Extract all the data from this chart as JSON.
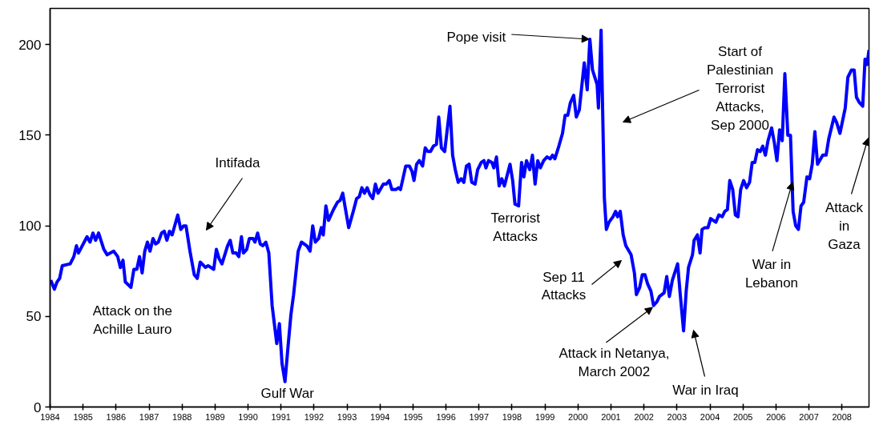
{
  "chart_data": {
    "type": "line",
    "x": [
      1984.02,
      1984.13,
      1984.21,
      1984.29,
      1984.37,
      1984.61,
      1984.72,
      1984.8,
      1984.86,
      1985.12,
      1985.21,
      1985.3,
      1985.38,
      1985.47,
      1985.63,
      1985.73,
      1985.93,
      1986.05,
      1986.13,
      1986.21,
      1986.28,
      1986.45,
      1986.54,
      1986.63,
      1986.71,
      1986.79,
      1986.87,
      1986.95,
      1987.03,
      1987.12,
      1987.2,
      1987.28,
      1987.38,
      1987.46,
      1987.54,
      1987.62,
      1987.7,
      1987.87,
      1987.96,
      1988.05,
      1988.12,
      1988.24,
      1988.37,
      1988.46,
      1988.55,
      1988.71,
      1988.79,
      1988.96,
      1989.04,
      1989.12,
      1989.21,
      1989.38,
      1989.46,
      1989.54,
      1989.64,
      1989.72,
      1989.8,
      1989.86,
      1989.96,
      1990.04,
      1990.15,
      1990.21,
      1990.29,
      1990.37,
      1990.45,
      1990.54,
      1990.63,
      1990.73,
      1990.87,
      1990.95,
      1991.03,
      1991.12,
      1991.22,
      1991.3,
      1991.38,
      1991.52,
      1991.62,
      1991.78,
      1991.88,
      1991.96,
      1992.04,
      1992.14,
      1992.22,
      1992.28,
      1992.36,
      1992.44,
      1992.59,
      1992.71,
      1992.79,
      1992.87,
      1993.05,
      1993.19,
      1993.29,
      1993.37,
      1993.45,
      1993.53,
      1993.61,
      1993.7,
      1993.78,
      1993.86,
      1993.94,
      1994.1,
      1994.19,
      1994.28,
      1994.36,
      1994.48,
      1994.56,
      1994.62,
      1994.78,
      1994.89,
      1994.97,
      1995.03,
      1995.11,
      1995.19,
      1995.29,
      1995.37,
      1995.45,
      1995.53,
      1995.62,
      1995.71,
      1995.78,
      1995.86,
      1995.96,
      1996.12,
      1996.2,
      1996.28,
      1996.37,
      1996.46,
      1996.54,
      1996.62,
      1996.7,
      1996.78,
      1996.88,
      1996.96,
      1997.07,
      1997.15,
      1997.21,
      1997.29,
      1997.39,
      1997.45,
      1997.53,
      1997.61,
      1997.69,
      1997.77,
      1997.94,
      1998.02,
      1998.09,
      1998.2,
      1998.29,
      1998.36,
      1998.44,
      1998.54,
      1998.62,
      1998.7,
      1998.78,
      1998.86,
      1998.96,
      1999.06,
      1999.16,
      1999.23,
      1999.3,
      1999.42,
      1999.53,
      1999.61,
      1999.69,
      1999.77,
      1999.87,
      1999.95,
      2000.04,
      2000.19,
      2000.28,
      2000.36,
      2000.44,
      2000.58,
      2000.62,
      2000.7,
      2000.8,
      2000.86,
      2000.94,
      2001.06,
      2001.14,
      2001.2,
      2001.28,
      2001.37,
      2001.45,
      2001.61,
      2001.71,
      2001.77,
      2001.87,
      2001.95,
      2002.03,
      2002.11,
      2002.21,
      2002.29,
      2002.39,
      2002.47,
      2002.61,
      2002.69,
      2002.77,
      2002.86,
      2003.02,
      2003.1,
      2003.2,
      2003.28,
      2003.35,
      2003.47,
      2003.52,
      2003.62,
      2003.7,
      2003.76,
      2003.85,
      2003.94,
      2004.02,
      2004.18,
      2004.27,
      2004.37,
      2004.45,
      2004.53,
      2004.6,
      2004.69,
      2004.77,
      2004.85,
      2004.93,
      2005.02,
      2005.11,
      2005.2,
      2005.28,
      2005.36,
      2005.44,
      2005.52,
      2005.6,
      2005.68,
      2005.76,
      2005.87,
      2005.95,
      2006.03,
      2006.11,
      2006.19,
      2006.27,
      2006.36,
      2006.44,
      2006.52,
      2006.6,
      2006.68,
      2006.76,
      2006.84,
      2006.94,
      2007.02,
      2007.1,
      2007.18,
      2007.26,
      2007.42,
      2007.52,
      2007.6,
      2007.76,
      2007.84,
      2007.94,
      2008.1,
      2008.18,
      2008.29,
      2008.37,
      2008.44,
      2008.53,
      2008.63,
      2008.7,
      2008.76,
      2008.82
    ],
    "series": [
      {
        "color": "#0000ff",
        "values": [
          70,
          65,
          69,
          71,
          78,
          79,
          83,
          89,
          85,
          94,
          91,
          96,
          92,
          96,
          87,
          84,
          86,
          83,
          77,
          81,
          69,
          66,
          76,
          76,
          83,
          74,
          86,
          91,
          86,
          93,
          90,
          91,
          96,
          97,
          92,
          97,
          95,
          106,
          98,
          100,
          100,
          86,
          73,
          71,
          80,
          77,
          78,
          76,
          87,
          82,
          79,
          89,
          92,
          85,
          85,
          83,
          94,
          85,
          87,
          93,
          93,
          91,
          96,
          90,
          89,
          91,
          85,
          56,
          35,
          46,
          24,
          14,
          35,
          51,
          62,
          86,
          91,
          89,
          86,
          100,
          91,
          93,
          99,
          95,
          111,
          103,
          109,
          113,
          114,
          118,
          99,
          108,
          115,
          116,
          121,
          118,
          121,
          117,
          115,
          123,
          118,
          123,
          123,
          125,
          120,
          120,
          121,
          120,
          133,
          133,
          130,
          125,
          134,
          136,
          133,
          143,
          141,
          141,
          144,
          145,
          160,
          143,
          141,
          166,
          139,
          131,
          124,
          126,
          124,
          133,
          134,
          124,
          123,
          131,
          135,
          136,
          132,
          136,
          135,
          132,
          138,
          122,
          126,
          122,
          134,
          125,
          112,
          111,
          135,
          127,
          136,
          131,
          139,
          123,
          136,
          132,
          136,
          138,
          137,
          139,
          137,
          144,
          151,
          161,
          161,
          168,
          172,
          160,
          164,
          190,
          175,
          203,
          186,
          178,
          165,
          208,
          115,
          98,
          102,
          105,
          108,
          105,
          108,
          95,
          89,
          84,
          74,
          62,
          66,
          73,
          73,
          68,
          64,
          56,
          58,
          61,
          63,
          72,
          61,
          70,
          79,
          62,
          42,
          64,
          77,
          84,
          92,
          95,
          85,
          98,
          99,
          99,
          104,
          102,
          106,
          105,
          108,
          109,
          125,
          120,
          106,
          105,
          120,
          125,
          121,
          124,
          135,
          135,
          142,
          141,
          144,
          139,
          147,
          154,
          146,
          136,
          153,
          147,
          184,
          150,
          150,
          108,
          100,
          98,
          111,
          113,
          127,
          126,
          134,
          152,
          134,
          139,
          139,
          148,
          160,
          157,
          151,
          165,
          182,
          186,
          186,
          171,
          168,
          166,
          192,
          189,
          197
        ]
      }
    ],
    "xlim": [
      1984,
      2008.82
    ],
    "ylim": [
      0,
      220
    ],
    "xticks": [
      1984,
      1985,
      1986,
      1987,
      1988,
      1989,
      1990,
      1991,
      1992,
      1993,
      1994,
      1995,
      1996,
      1997,
      1998,
      1999,
      2000,
      2001,
      2002,
      2003,
      2004,
      2005,
      2006,
      2007,
      2008
    ],
    "yticks": [
      0,
      50,
      100,
      150,
      200
    ],
    "grid": false,
    "marker": "none",
    "line_style": "solid",
    "annotations": [
      {
        "text": "Attack on the\nAchille Lauro",
        "x": 1986.45,
        "y": 66
      },
      "Intifada",
      {
        "text": "Gulf War",
        "x": 1991.12,
        "y": 14
      },
      {
        "text": "Pope visit",
        "x": 2000.34,
        "y": 203
      },
      {
        "text": "Terrorist\nAttacks",
        "x": 1998.2,
        "y": 111
      },
      "Start of\nPalestinian\nTerrorist\nAttacks,\nSep 2000",
      "Sep 11\nAttacks",
      {
        "text": "Attack in Netanya,\nMarch 2002",
        "x": 2002.26,
        "y": 55
      },
      "War in Iraq",
      {
        "text": "War in\nLebanon",
        "x": 2006.5,
        "y": 124
      },
      "Attack\nin\nGaza"
    ]
  }
}
